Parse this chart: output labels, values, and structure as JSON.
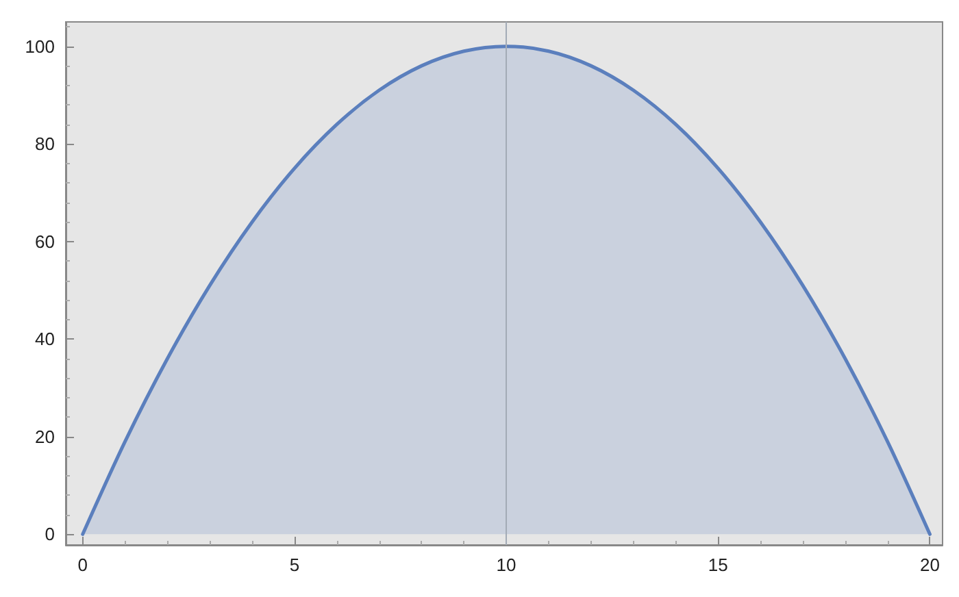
{
  "chart_data": {
    "type": "area",
    "x": [
      0,
      1,
      2,
      3,
      4,
      5,
      6,
      7,
      8,
      9,
      10,
      11,
      12,
      13,
      14,
      15,
      16,
      17,
      18,
      19,
      20
    ],
    "series": [
      {
        "color": "#5b7fbd",
        "values": [
          0,
          19,
          36,
          51,
          64,
          75,
          84,
          91,
          96,
          99,
          100,
          99,
          96,
          91,
          84,
          75,
          64,
          51,
          36,
          19,
          0
        ]
      }
    ],
    "xlim": [
      -0.4,
      20.3
    ],
    "ylim": [
      -2.2,
      105
    ],
    "xticks": [
      0,
      5,
      10,
      15,
      20
    ],
    "yticks": [
      0,
      20,
      40,
      60,
      80,
      100
    ],
    "ref_lines": [
      {
        "axis": "x",
        "value": 10,
        "color": "#a3abb6"
      }
    ],
    "grid": false,
    "marker": "none",
    "line_style": "solid"
  }
}
